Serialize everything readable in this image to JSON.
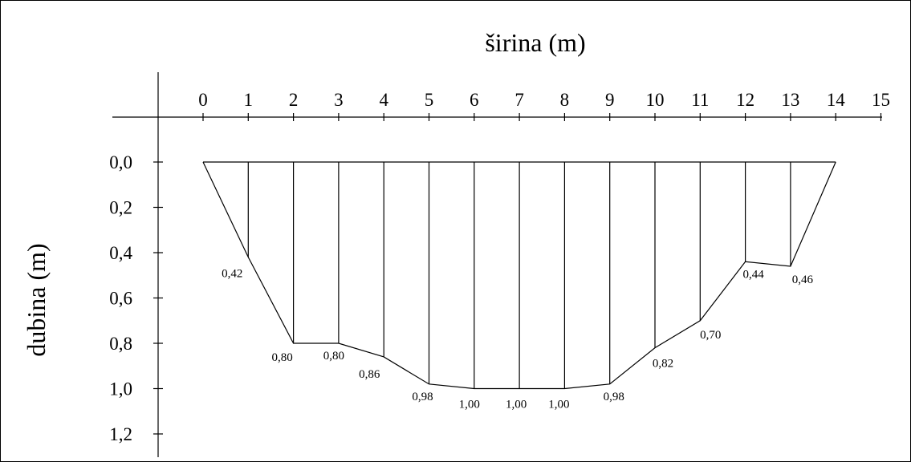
{
  "chart_data": {
    "type": "line",
    "title": "",
    "xlabel": "širina (m)",
    "ylabel": "dubina (m)",
    "xlim": [
      0,
      15
    ],
    "ylim": [
      0,
      1.2
    ],
    "y_inverted": true,
    "x_axis_position": "top",
    "grid": false,
    "x_ticks": [
      "0",
      "1",
      "2",
      "3",
      "4",
      "5",
      "6",
      "7",
      "8",
      "9",
      "10",
      "11",
      "12",
      "13",
      "14",
      "15"
    ],
    "y_ticks": [
      "0,0",
      "0,2",
      "0,4",
      "0,6",
      "0,8",
      "1,0",
      "1,2"
    ],
    "x": [
      0,
      1,
      2,
      3,
      4,
      5,
      6,
      7,
      8,
      9,
      10,
      11,
      12,
      13,
      14
    ],
    "depth": [
      0,
      0.42,
      0.8,
      0.8,
      0.86,
      0.98,
      1.0,
      1.0,
      1.0,
      0.98,
      0.82,
      0.7,
      0.44,
      0.46,
      0
    ],
    "point_labels": [
      {
        "x": 1,
        "text": "0,42"
      },
      {
        "x": 2,
        "text": "0,80"
      },
      {
        "x": 3,
        "text": "0,80"
      },
      {
        "x": 4,
        "text": "0,86"
      },
      {
        "x": 5,
        "text": "0,98"
      },
      {
        "x": 6,
        "text": "1,00"
      },
      {
        "x": 7,
        "text": "1,00"
      },
      {
        "x": 8,
        "text": "1,00"
      },
      {
        "x": 9,
        "text": "0,98"
      },
      {
        "x": 10,
        "text": "0,82"
      },
      {
        "x": 11,
        "text": "0,70"
      },
      {
        "x": 12,
        "text": "0,44"
      },
      {
        "x": 13,
        "text": "0,46"
      }
    ]
  }
}
